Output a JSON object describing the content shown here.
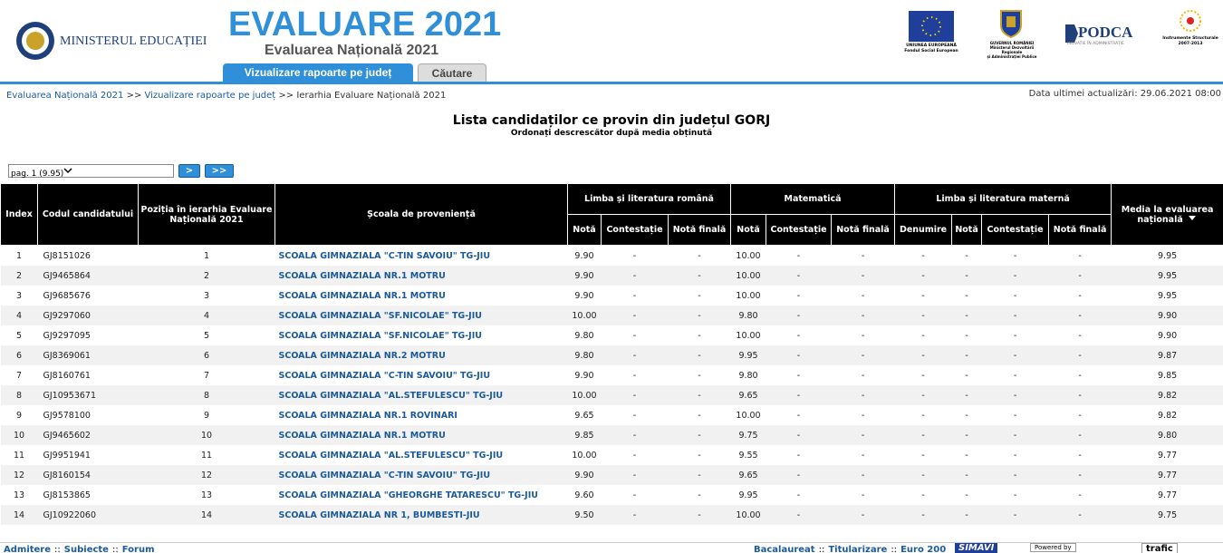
{
  "header": {
    "ministry": "MINISTERUL EDUCAȚIEI",
    "title": "EVALUARE 2021",
    "subtitle": "Evaluarea Națională 2021",
    "tabs": [
      "Vizualizare rapoarte pe județ",
      "Căutare"
    ],
    "logos": {
      "eu": [
        "UNIUNEA EUROPEANĂ",
        "Fondul Social European"
      ],
      "gov": [
        "GUVERNUL ROMÂNIEI",
        "Ministerul Dezvoltării Regionale",
        "și Administrației Publice"
      ],
      "podca": [
        "PODCA",
        "INOVAȚIE ÎN ADMINISTRAȚIE"
      ],
      "is": [
        "Instrumente Structurale",
        "2007-2013"
      ]
    }
  },
  "breadcrumb": {
    "items": [
      "Evaluarea Națională 2021",
      "Vizualizare rapoarte pe județ",
      "Ierarhia Evaluare Națională 2021"
    ],
    "separator": ">>"
  },
  "updated": "Data ultimei actualizări: 29.06.2021 08:00",
  "heading": {
    "title": "Lista candidaților ce provin din județul GORJ",
    "subtitle": "Ordonați descrescător după media obținută"
  },
  "pager": {
    "select": "pag. 1 (9.95)",
    "buttons": [
      ">",
      ">>"
    ]
  },
  "table": {
    "headers": [
      "Index",
      "Codul candidatului",
      "Poziția în ierarhia Evaluare Națională 2021",
      "Școala de proveniență",
      "Media la evaluarea națională"
    ],
    "groups": [
      "Limba și literatura română",
      "Matematică",
      "Limba și literatura maternă"
    ],
    "subheaders": [
      "Notă",
      "Contestație",
      "Notă finală",
      "Notă",
      "Contestație",
      "Notă finală",
      "Denumire",
      "Notă",
      "Contestație",
      "Notă finală"
    ],
    "rows": [
      [
        "1",
        "GJ8151026",
        "1",
        "SCOALA GIMNAZIALA \"C-TIN SAVOIU\" TG-JIU",
        "9.90",
        "-",
        "-",
        "10.00",
        "-",
        "-",
        "-",
        "-",
        "-",
        "-",
        "9.95"
      ],
      [
        "2",
        "GJ9465864",
        "2",
        "SCOALA GIMNAZIALA NR.1 MOTRU",
        "9.90",
        "-",
        "-",
        "10.00",
        "-",
        "-",
        "-",
        "-",
        "-",
        "-",
        "9.95"
      ],
      [
        "3",
        "GJ9685676",
        "3",
        "SCOALA GIMNAZIALA NR.1 MOTRU",
        "9.90",
        "-",
        "-",
        "10.00",
        "-",
        "-",
        "-",
        "-",
        "-",
        "-",
        "9.95"
      ],
      [
        "4",
        "GJ9297060",
        "4",
        "SCOALA GIMNAZIALA \"SF.NICOLAE\" TG-JIU",
        "10.00",
        "-",
        "-",
        "9.80",
        "-",
        "-",
        "-",
        "-",
        "-",
        "-",
        "9.90"
      ],
      [
        "5",
        "GJ9297095",
        "5",
        "SCOALA GIMNAZIALA \"SF.NICOLAE\" TG-JIU",
        "9.80",
        "-",
        "-",
        "10.00",
        "-",
        "-",
        "-",
        "-",
        "-",
        "-",
        "9.90"
      ],
      [
        "6",
        "GJ8369061",
        "6",
        "SCOALA GIMNAZIALA NR.2 MOTRU",
        "9.80",
        "-",
        "-",
        "9.95",
        "-",
        "-",
        "-",
        "-",
        "-",
        "-",
        "9.87"
      ],
      [
        "7",
        "GJ8160761",
        "7",
        "SCOALA GIMNAZIALA \"C-TIN SAVOIU\" TG-JIU",
        "9.90",
        "-",
        "-",
        "9.80",
        "-",
        "-",
        "-",
        "-",
        "-",
        "-",
        "9.85"
      ],
      [
        "8",
        "GJ10953671",
        "8",
        "SCOALA GIMNAZIALA \"AL.STEFULESCU\" TG-JIU",
        "10.00",
        "-",
        "-",
        "9.65",
        "-",
        "-",
        "-",
        "-",
        "-",
        "-",
        "9.82"
      ],
      [
        "9",
        "GJ9578100",
        "9",
        "SCOALA GIMNAZIALA NR.1 ROVINARI",
        "9.65",
        "-",
        "-",
        "10.00",
        "-",
        "-",
        "-",
        "-",
        "-",
        "-",
        "9.82"
      ],
      [
        "10",
        "GJ9465602",
        "10",
        "SCOALA GIMNAZIALA NR.1 MOTRU",
        "9.85",
        "-",
        "-",
        "9.75",
        "-",
        "-",
        "-",
        "-",
        "-",
        "-",
        "9.80"
      ],
      [
        "11",
        "GJ9951941",
        "11",
        "SCOALA GIMNAZIALA \"AL.STEFULESCU\" TG-JIU",
        "10.00",
        "-",
        "-",
        "9.55",
        "-",
        "-",
        "-",
        "-",
        "-",
        "-",
        "9.77"
      ],
      [
        "12",
        "GJ8160154",
        "12",
        "SCOALA GIMNAZIALA \"C-TIN SAVOIU\" TG-JIU",
        "9.90",
        "-",
        "-",
        "9.65",
        "-",
        "-",
        "-",
        "-",
        "-",
        "-",
        "9.77"
      ],
      [
        "13",
        "GJ8153865",
        "13",
        "SCOALA GIMNAZIALA \"GHEORGHE TATARESCU\" TG-JIU",
        "9.60",
        "-",
        "-",
        "9.95",
        "-",
        "-",
        "-",
        "-",
        "-",
        "-",
        "9.77"
      ],
      [
        "14",
        "GJ10922060",
        "14",
        "SCOALA GIMNAZIALA NR 1, BUMBESTI-JIU",
        "9.50",
        "-",
        "-",
        "10.00",
        "-",
        "-",
        "-",
        "-",
        "-",
        "-",
        "9.75"
      ]
    ]
  },
  "footer": {
    "left": [
      "Admitere",
      "Subiecte",
      "Forum"
    ],
    "right": [
      "Bacalaureat",
      "Titularizare",
      "Euro 200"
    ],
    "separator": "::",
    "badges": [
      "SIMAVI",
      "Powered by",
      "trafic"
    ]
  }
}
